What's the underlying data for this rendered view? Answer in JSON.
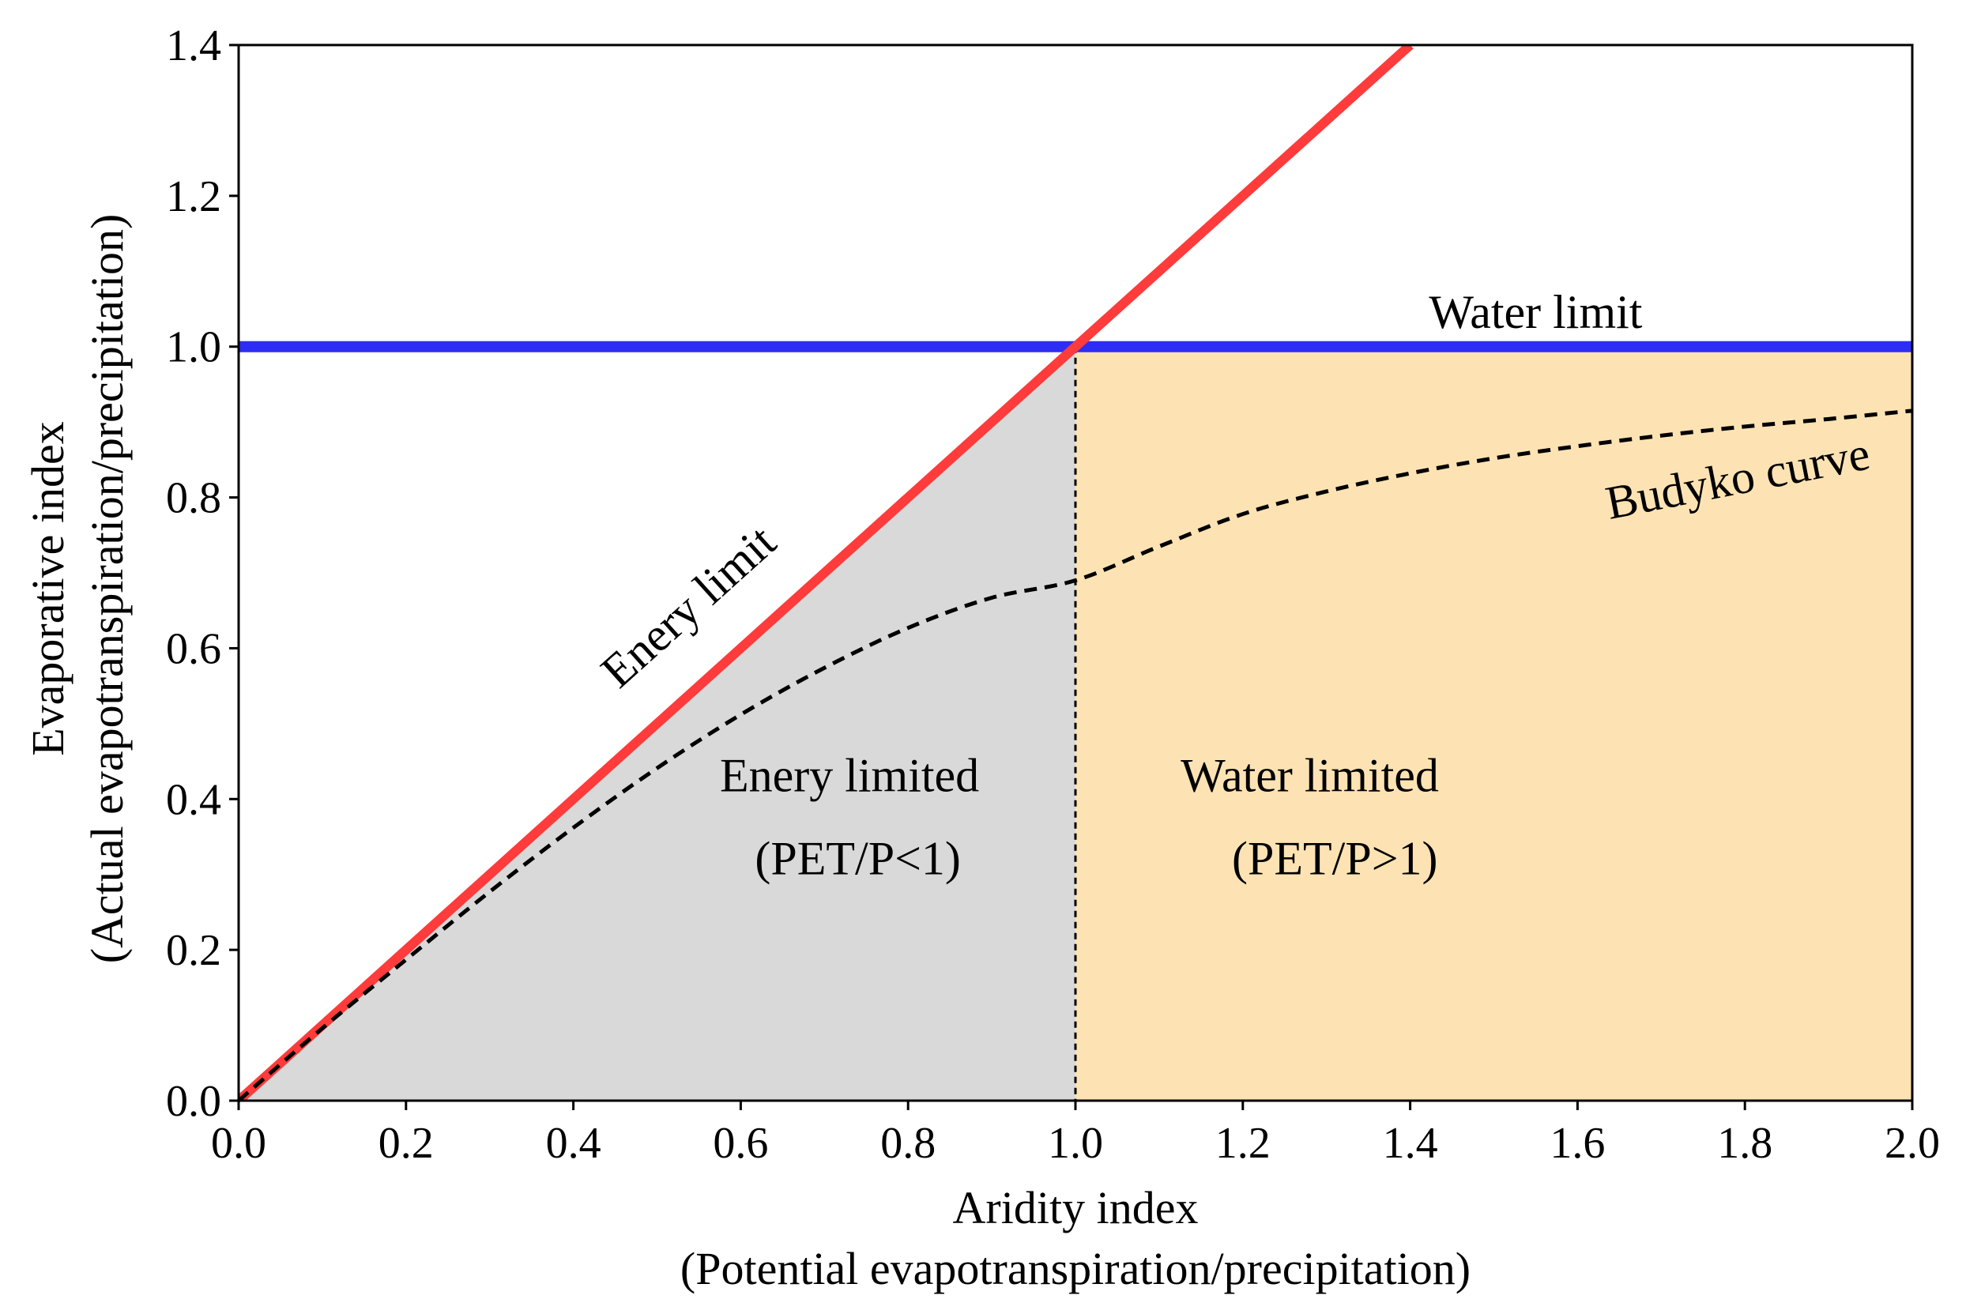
{
  "chart_data": {
    "type": "line",
    "title": "",
    "xlabel": "Aridity index",
    "xlabel_sub": "(Potential evapotranspiration/precipitation)",
    "ylabel": "Evaporative index",
    "ylabel_sub": "(Actual evapotranspiration/precipitation)",
    "xlim": [
      0.0,
      2.0
    ],
    "ylim": [
      0.0,
      1.4
    ],
    "xticks": [
      "0.0",
      "0.2",
      "0.4",
      "0.6",
      "0.8",
      "1.0",
      "1.2",
      "1.4",
      "1.6",
      "1.8",
      "2.0"
    ],
    "yticks": [
      "0.0",
      "0.2",
      "0.4",
      "0.6",
      "0.8",
      "1.0",
      "1.2",
      "1.4"
    ],
    "grid": false,
    "series": [
      {
        "name": "Enery limit",
        "type": "line",
        "color": "#ff3b3b",
        "x": [
          0.0,
          1.4
        ],
        "y": [
          0.0,
          1.4
        ]
      },
      {
        "name": "Water limit",
        "type": "line",
        "color": "#2d2df5",
        "x": [
          0.0,
          2.0
        ],
        "y": [
          1.0,
          1.0
        ]
      },
      {
        "name": "Budyko curve",
        "type": "dashed-line",
        "color": "#000000",
        "x": [
          0.0,
          0.1,
          0.2,
          0.3,
          0.4,
          0.5,
          0.6,
          0.7,
          0.8,
          0.9,
          1.0,
          1.1,
          1.2,
          1.3,
          1.4,
          1.5,
          1.6,
          1.7,
          1.8,
          1.9,
          2.0
        ],
        "y": [
          0.0,
          0.096,
          0.187,
          0.277,
          0.362,
          0.441,
          0.512,
          0.574,
          0.627,
          0.667,
          0.69,
          0.735,
          0.778,
          0.808,
          0.832,
          0.852,
          0.868,
          0.882,
          0.894,
          0.904,
          0.915
        ]
      }
    ],
    "regions": [
      {
        "name": "Enery limited",
        "label": "(PET/P<1)",
        "color": "#d9d9d9"
      },
      {
        "name": "Water limited",
        "label": "(PET/P>1)",
        "color": "#fde3b3"
      }
    ],
    "annotations": {
      "energy_limit": "Enery limit",
      "water_limit": "Water limit",
      "budyko_curve": "Budyko curve",
      "energy_limited": "Enery limited",
      "energy_limited_cond": "(PET/P<1)",
      "water_limited": "Water limited",
      "water_limited_cond": "(PET/P>1)"
    }
  }
}
